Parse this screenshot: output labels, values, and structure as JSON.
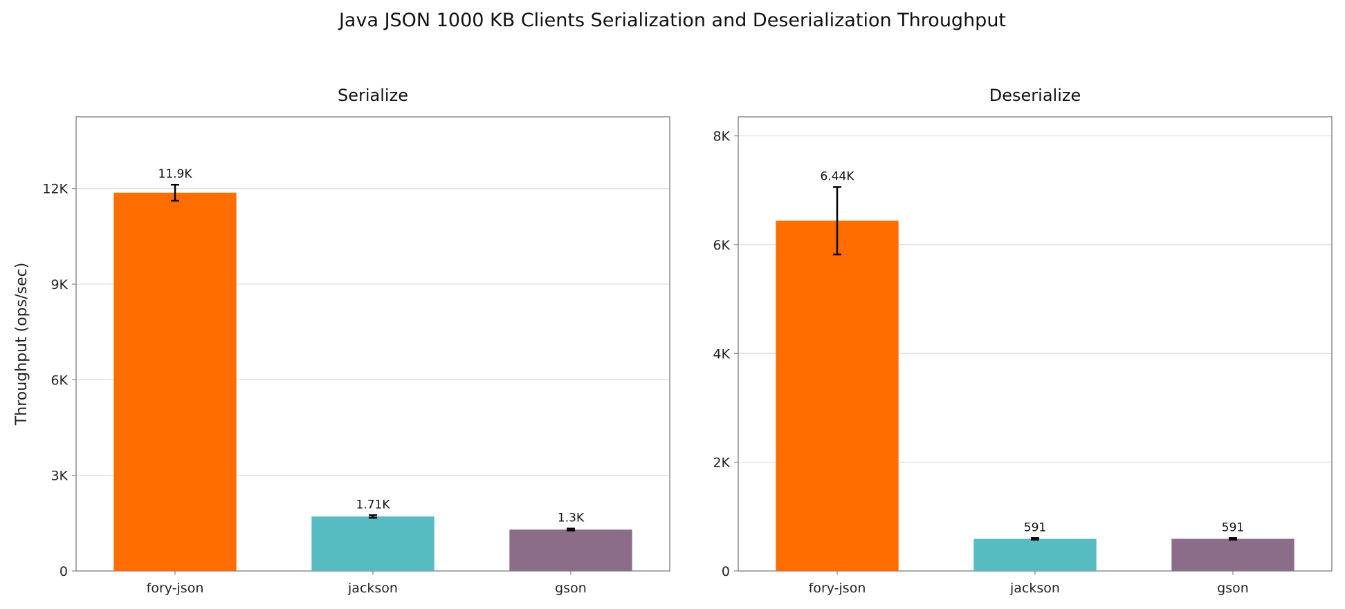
{
  "title": "Java JSON 1000 KB Clients Serialization and Deserialization Throughput",
  "colors": {
    "fory-json": "#ff6d00",
    "jackson": "#56bcc2",
    "gson": "#8c6d89",
    "grid": "#d9dce6",
    "frame": "#7f8494"
  },
  "chart_data": [
    {
      "type": "bar",
      "title": "Serialize",
      "ylabel": "Throughput (ops/sec)",
      "categories": [
        "fory-json",
        "jackson",
        "gson"
      ],
      "values": [
        11870,
        1710,
        1300
      ],
      "errors": [
        250,
        40,
        30
      ],
      "labels": [
        "11.9K",
        "1.71K",
        "1.3K"
      ],
      "ylim": [
        0,
        14250
      ],
      "yticks": [
        0,
        3000,
        6000,
        9000,
        12000
      ],
      "ytick_labels": [
        "0",
        "3K",
        "6K",
        "9K",
        "12K"
      ],
      "grid": true
    },
    {
      "type": "bar",
      "title": "Deserialize",
      "ylabel": "",
      "categories": [
        "fory-json",
        "jackson",
        "gson"
      ],
      "values": [
        6440,
        591,
        591
      ],
      "errors": [
        620,
        15,
        15
      ],
      "labels": [
        "6.44K",
        "591",
        "591"
      ],
      "ylim": [
        0,
        8350
      ],
      "yticks": [
        0,
        2000,
        4000,
        6000,
        8000
      ],
      "ytick_labels": [
        "0",
        "2K",
        "4K",
        "6K",
        "8K"
      ],
      "grid": true
    }
  ]
}
